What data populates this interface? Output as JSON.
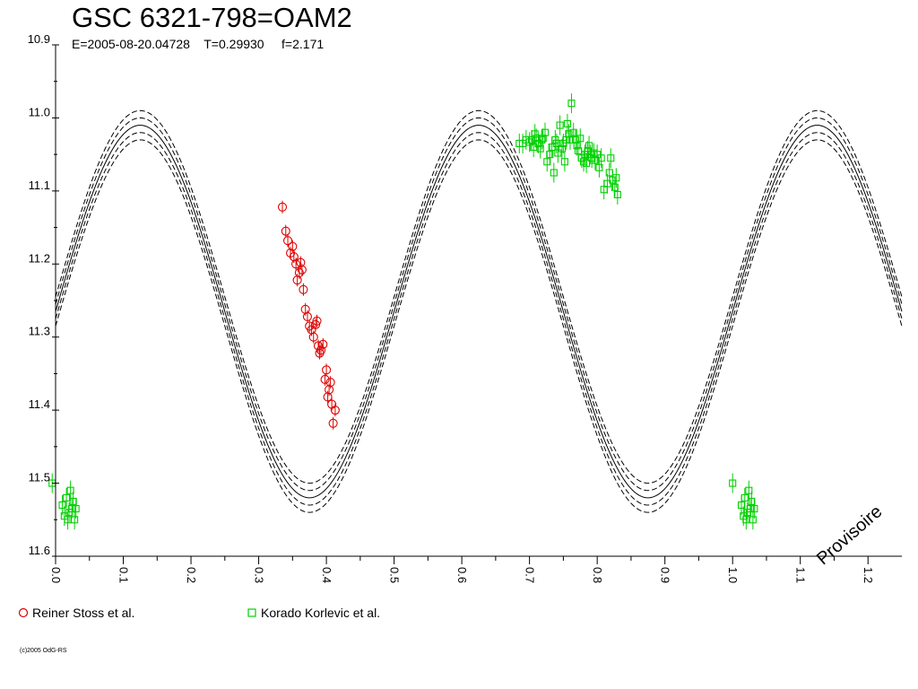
{
  "header": {
    "title": "GSC 6321-798=OAM2",
    "subtitle": "E=2005-08-20.04728    T=0.29930     f=2.171"
  },
  "watermark": "Provisoire",
  "copyright": "(c)2005 OdG-RS",
  "legend": [
    {
      "label": "Reiner Stoss et al.",
      "marker": "circle",
      "color": "#e00000"
    },
    {
      "label": "Korado Korlevic et al.",
      "marker": "square",
      "color": "#00d000"
    }
  ],
  "chart_data": {
    "type": "scatter",
    "title": "GSC 6321-798=OAM2",
    "xlim": [
      0.0,
      1.25
    ],
    "ylim": [
      10.9,
      11.6
    ],
    "y_inverted": true,
    "x_ticks": [
      "0.0",
      "0.1",
      "0.2",
      "0.3",
      "0.4",
      "0.5",
      "0.6",
      "0.7",
      "0.8",
      "0.9",
      "1.0",
      "1.1",
      "1.2"
    ],
    "y_ticks": [
      "10.9",
      "11.0",
      "11.1",
      "11.2",
      "11.3",
      "11.4",
      "11.5",
      "11.6"
    ],
    "grid": false,
    "model": {
      "description_shown": "dashed sinusoid envelope",
      "mean": 11.265,
      "amplitude": 0.255,
      "offsets": [
        -0.02,
        -0.01,
        0.0,
        0.01,
        0.02
      ]
    },
    "series": [
      {
        "name": "Reiner Stoss et al.",
        "marker": "circle",
        "color": "#e00000",
        "points": [
          [
            0.335,
            11.122
          ],
          [
            0.34,
            11.155
          ],
          [
            0.343,
            11.168
          ],
          [
            0.347,
            11.185
          ],
          [
            0.35,
            11.176
          ],
          [
            0.352,
            11.19
          ],
          [
            0.355,
            11.2
          ],
          [
            0.357,
            11.222
          ],
          [
            0.36,
            11.212
          ],
          [
            0.362,
            11.198
          ],
          [
            0.364,
            11.208
          ],
          [
            0.366,
            11.235
          ],
          [
            0.369,
            11.262
          ],
          [
            0.372,
            11.272
          ],
          [
            0.375,
            11.285
          ],
          [
            0.378,
            11.29
          ],
          [
            0.381,
            11.3
          ],
          [
            0.384,
            11.283
          ],
          [
            0.386,
            11.278
          ],
          [
            0.388,
            11.312
          ],
          [
            0.39,
            11.322
          ],
          [
            0.392,
            11.318
          ],
          [
            0.395,
            11.31
          ],
          [
            0.398,
            11.358
          ],
          [
            0.4,
            11.345
          ],
          [
            0.402,
            11.382
          ],
          [
            0.404,
            11.372
          ],
          [
            0.406,
            11.362
          ],
          [
            0.408,
            11.392
          ],
          [
            0.41,
            11.418
          ],
          [
            0.413,
            11.4
          ]
        ]
      },
      {
        "name": "Korado Korlevic et al.",
        "marker": "square",
        "color": "#00d000",
        "points": [
          [
            -0.005,
            11.5
          ],
          [
            0.01,
            11.53
          ],
          [
            0.013,
            11.545
          ],
          [
            0.016,
            11.52
          ],
          [
            0.018,
            11.55
          ],
          [
            0.02,
            11.54
          ],
          [
            0.022,
            11.51
          ],
          [
            0.024,
            11.535
          ],
          [
            0.026,
            11.525
          ],
          [
            0.028,
            11.55
          ],
          [
            0.03,
            11.535
          ],
          [
            0.685,
            11.035
          ],
          [
            0.69,
            11.035
          ],
          [
            0.695,
            11.03
          ],
          [
            0.7,
            11.033
          ],
          [
            0.703,
            11.03
          ],
          [
            0.706,
            11.04
          ],
          [
            0.708,
            11.022
          ],
          [
            0.71,
            11.028
          ],
          [
            0.713,
            11.035
          ],
          [
            0.716,
            11.042
          ],
          [
            0.718,
            11.03
          ],
          [
            0.72,
            11.028
          ],
          [
            0.723,
            11.02
          ],
          [
            0.726,
            11.06
          ],
          [
            0.73,
            11.05
          ],
          [
            0.733,
            11.04
          ],
          [
            0.736,
            11.075
          ],
          [
            0.738,
            11.03
          ],
          [
            0.74,
            11.035
          ],
          [
            0.742,
            11.048
          ],
          [
            0.745,
            11.01
          ],
          [
            0.748,
            11.042
          ],
          [
            0.75,
            11.035
          ],
          [
            0.752,
            11.06
          ],
          [
            0.754,
            11.03
          ],
          [
            0.756,
            11.008
          ],
          [
            0.758,
            11.022
          ],
          [
            0.76,
            11.03
          ],
          [
            0.762,
            10.98
          ],
          [
            0.765,
            11.02
          ],
          [
            0.768,
            11.03
          ],
          [
            0.77,
            11.038
          ],
          [
            0.772,
            11.045
          ],
          [
            0.775,
            11.028
          ],
          [
            0.777,
            11.055
          ],
          [
            0.78,
            11.06
          ],
          [
            0.782,
            11.05
          ],
          [
            0.784,
            11.062
          ],
          [
            0.786,
            11.045
          ],
          [
            0.788,
            11.038
          ],
          [
            0.79,
            11.05
          ],
          [
            0.792,
            11.055
          ],
          [
            0.795,
            11.048
          ],
          [
            0.797,
            11.058
          ],
          [
            0.8,
            11.05
          ],
          [
            0.803,
            11.068
          ],
          [
            0.806,
            11.055
          ],
          [
            0.81,
            11.098
          ],
          [
            0.815,
            11.09
          ],
          [
            0.818,
            11.075
          ],
          [
            0.82,
            11.055
          ],
          [
            0.823,
            11.085
          ],
          [
            0.826,
            11.095
          ],
          [
            0.828,
            11.082
          ],
          [
            0.83,
            11.105
          ],
          [
            1.0,
            11.5
          ],
          [
            1.013,
            11.53
          ],
          [
            1.016,
            11.545
          ],
          [
            1.018,
            11.52
          ],
          [
            1.02,
            11.55
          ],
          [
            1.022,
            11.54
          ],
          [
            1.024,
            11.51
          ],
          [
            1.026,
            11.535
          ],
          [
            1.028,
            11.525
          ],
          [
            1.03,
            11.55
          ],
          [
            1.032,
            11.535
          ]
        ]
      }
    ]
  }
}
